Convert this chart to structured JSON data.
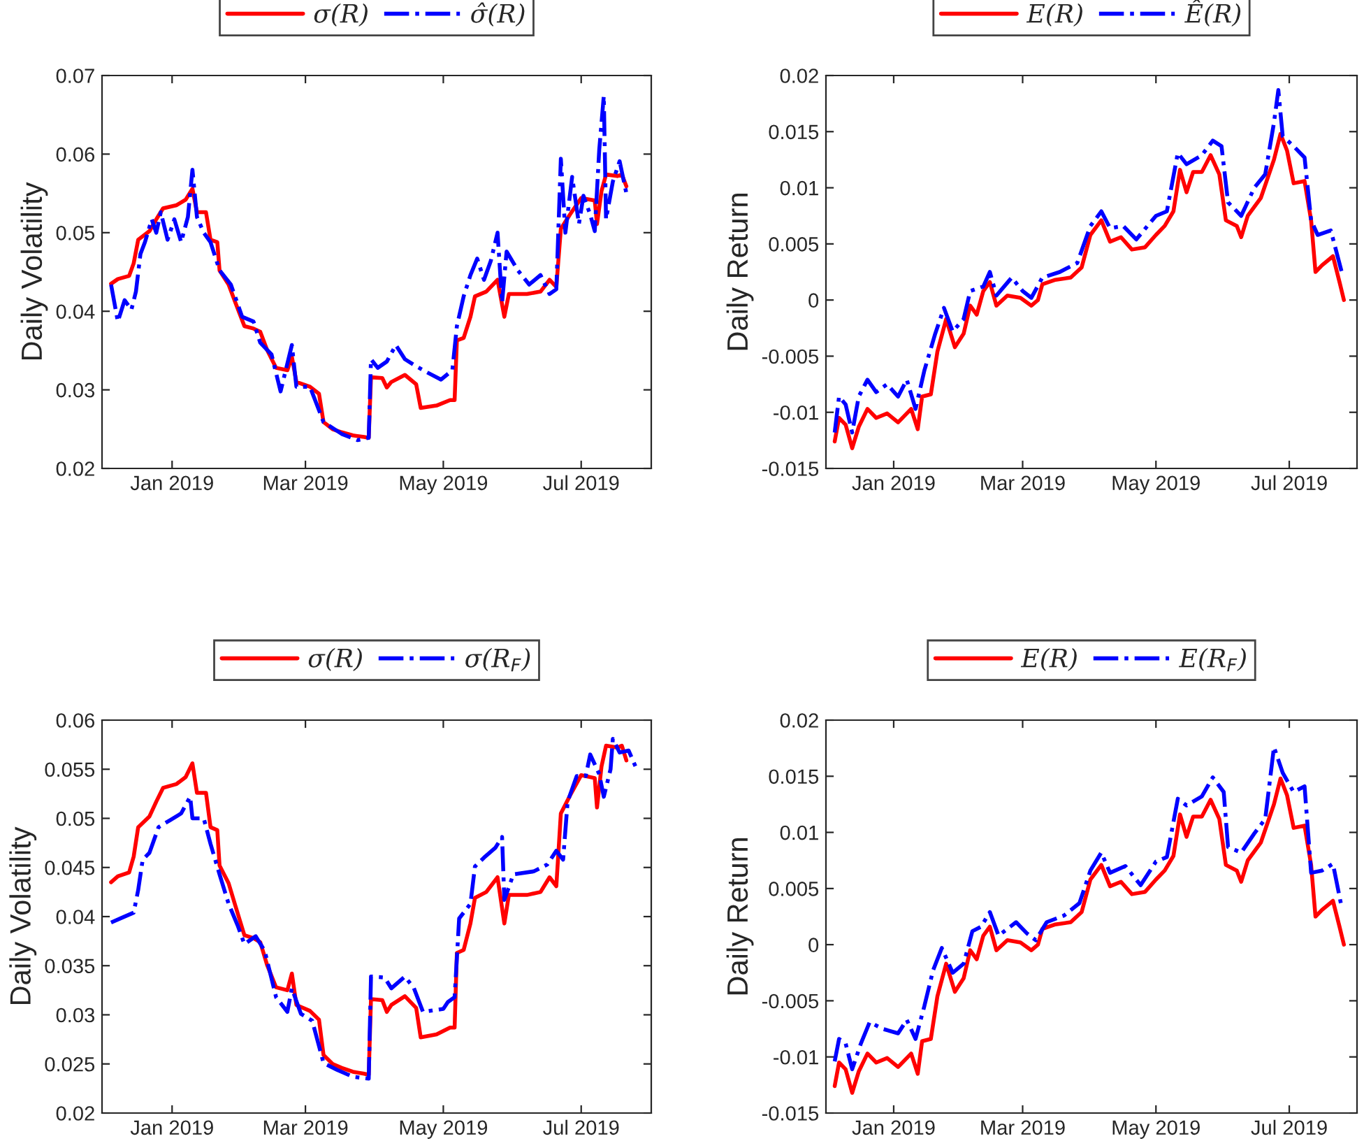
{
  "chart_data": [
    {
      "type": "line",
      "ylabel": "Daily Volatility",
      "legend": "top",
      "grid": false,
      "xlim": [
        "2018-12-01",
        "2019-08-01"
      ],
      "xticks": [
        {
          "value": "2019-01-01",
          "label": "Jan 2019"
        },
        {
          "value": "2019-03-01",
          "label": "Mar 2019"
        },
        {
          "value": "2019-05-01",
          "label": "May 2019"
        },
        {
          "value": "2019-07-01",
          "label": "Jul 2019"
        }
      ],
      "ylim": [
        0.02,
        0.07
      ],
      "yticks": [
        0.02,
        0.03,
        0.04,
        0.05,
        0.06,
        0.07
      ],
      "series": [
        {
          "name": "σ(R)",
          "color": "#ff0000",
          "line_style": "solid",
          "x": [
            "2018-12-05",
            "2018-12-08",
            "2018-12-13",
            "2018-12-15",
            "2018-12-17",
            "2018-12-22",
            "2018-12-25",
            "2018-12-28",
            "2019-01-03",
            "2019-01-07",
            "2019-01-10",
            "2019-01-12",
            "2019-01-16",
            "2019-01-18",
            "2019-01-21",
            "2019-01-22",
            "2019-01-26",
            "2019-01-29",
            "2019-02-02",
            "2019-02-06",
            "2019-02-09",
            "2019-02-12",
            "2019-02-16",
            "2019-02-21",
            "2019-02-23",
            "2019-02-25",
            "2019-03-03",
            "2019-03-07",
            "2019-03-09",
            "2019-03-13",
            "2019-03-17",
            "2019-03-22",
            "2019-03-27",
            "2019-03-29",
            "2019-03-30",
            "2019-04-04",
            "2019-04-06",
            "2019-04-08",
            "2019-04-14",
            "2019-04-19",
            "2019-04-21",
            "2019-04-28",
            "2019-05-04",
            "2019-05-06",
            "2019-05-07",
            "2019-05-10",
            "2019-05-13",
            "2019-05-15",
            "2019-05-20",
            "2019-05-25",
            "2019-05-28",
            "2019-05-30",
            "2019-06-07",
            "2019-06-13",
            "2019-06-17",
            "2019-06-20",
            "2019-06-22",
            "2019-06-26",
            "2019-07-01",
            "2019-07-07",
            "2019-07-08",
            "2019-07-10",
            "2019-07-12",
            "2019-07-17",
            "2019-07-19",
            "2019-07-21"
          ],
          "values": [
            0.0435,
            0.0441,
            0.0445,
            0.0461,
            0.0491,
            0.0502,
            0.0517,
            0.0531,
            0.0535,
            0.0542,
            0.0556,
            0.0526,
            0.0526,
            0.0491,
            0.0488,
            0.0452,
            0.0434,
            0.0411,
            0.0381,
            0.0378,
            0.0374,
            0.0351,
            0.0328,
            0.0325,
            0.0342,
            0.031,
            0.0304,
            0.0295,
            0.0259,
            0.025,
            0.0246,
            0.0242,
            0.024,
            0.0239,
            0.0316,
            0.0315,
            0.0303,
            0.031,
            0.0319,
            0.0307,
            0.0277,
            0.028,
            0.0287,
            0.0287,
            0.0363,
            0.0366,
            0.0393,
            0.0419,
            0.0425,
            0.044,
            0.0393,
            0.0422,
            0.0422,
            0.0425,
            0.044,
            0.0431,
            0.0505,
            0.0523,
            0.0544,
            0.0541,
            0.0511,
            0.0553,
            0.0574,
            0.0572,
            0.0574,
            0.0559
          ]
        },
        {
          "name": "σ̂(R)",
          "color": "#0000ff",
          "line_style": "dashdot",
          "x": [
            "2018-12-05",
            "2018-12-08",
            "2018-12-11",
            "2018-12-14",
            "2018-12-16",
            "2018-12-18",
            "2018-12-20",
            "2018-12-23",
            "2018-12-25",
            "2018-12-27",
            "2018-12-30",
            "2019-01-02",
            "2019-01-05",
            "2019-01-08",
            "2019-01-10",
            "2019-01-12",
            "2019-01-15",
            "2019-01-18",
            "2019-01-22",
            "2019-01-27",
            "2019-02-01",
            "2019-02-06",
            "2019-02-09",
            "2019-02-14",
            "2019-02-18",
            "2019-02-23",
            "2019-02-25",
            "2019-03-03",
            "2019-03-09",
            "2019-03-17",
            "2019-03-24",
            "2019-03-29",
            "2019-03-30",
            "2019-04-02",
            "2019-04-06",
            "2019-04-10",
            "2019-04-14",
            "2019-04-19",
            "2019-04-24",
            "2019-04-30",
            "2019-05-05",
            "2019-05-07",
            "2019-05-10",
            "2019-05-13",
            "2019-05-16",
            "2019-05-19",
            "2019-05-22",
            "2019-05-25",
            "2019-05-27",
            "2019-05-29",
            "2019-06-03",
            "2019-06-08",
            "2019-06-13",
            "2019-06-17",
            "2019-06-20",
            "2019-06-22",
            "2019-06-24",
            "2019-06-27",
            "2019-06-30",
            "2019-07-02",
            "2019-07-05",
            "2019-07-07",
            "2019-07-09",
            "2019-07-11",
            "2019-07-12",
            "2019-07-15",
            "2019-07-18",
            "2019-07-21"
          ],
          "values": [
            0.0434,
            0.0387,
            0.0414,
            0.0402,
            0.0425,
            0.0473,
            0.0488,
            0.0517,
            0.05,
            0.0526,
            0.0491,
            0.0517,
            0.0488,
            0.052,
            0.058,
            0.052,
            0.05,
            0.0488,
            0.0452,
            0.0434,
            0.0393,
            0.0387,
            0.036,
            0.0345,
            0.0298,
            0.0357,
            0.0304,
            0.0304,
            0.0259,
            0.0244,
            0.0236,
            0.0239,
            0.0339,
            0.0328,
            0.0336,
            0.0357,
            0.0339,
            0.033,
            0.0322,
            0.0313,
            0.0325,
            0.0381,
            0.0419,
            0.0446,
            0.0467,
            0.044,
            0.0464,
            0.05,
            0.0411,
            0.0476,
            0.0452,
            0.0434,
            0.0446,
            0.0422,
            0.0428,
            0.0594,
            0.05,
            0.0571,
            0.0511,
            0.0547,
            0.0523,
            0.0502,
            0.0606,
            0.0674,
            0.0517,
            0.0565,
            0.0591,
            0.055
          ]
        }
      ]
    },
    {
      "type": "line",
      "ylabel": "Daily Return",
      "legend": "top",
      "grid": false,
      "xlim": [
        "2018-12-01",
        "2019-08-01"
      ],
      "xticks": [
        {
          "value": "2019-01-01",
          "label": "Jan 2019"
        },
        {
          "value": "2019-03-01",
          "label": "Mar 2019"
        },
        {
          "value": "2019-05-01",
          "label": "May 2019"
        },
        {
          "value": "2019-07-01",
          "label": "Jul 2019"
        }
      ],
      "ylim": [
        -0.015,
        0.02
      ],
      "yticks": [
        -0.015,
        -0.01,
        -0.005,
        0,
        0.005,
        0.01,
        0.015,
        0.02
      ],
      "series": [
        {
          "name": "E(R)",
          "color": "#ff0000",
          "line_style": "solid",
          "x": [
            "2018-12-05",
            "2018-12-07",
            "2018-12-10",
            "2018-12-13",
            "2018-12-16",
            "2018-12-20",
            "2018-12-24",
            "2018-12-29",
            "2019-01-03",
            "2019-01-09",
            "2019-01-12",
            "2019-01-14",
            "2019-01-18",
            "2019-01-21",
            "2019-01-25",
            "2019-01-29",
            "2019-02-02",
            "2019-02-05",
            "2019-02-08",
            "2019-02-11",
            "2019-02-14",
            "2019-02-17",
            "2019-02-22",
            "2019-02-28",
            "2019-03-05",
            "2019-03-08",
            "2019-03-10",
            "2019-03-16",
            "2019-03-23",
            "2019-03-28",
            "2019-04-01",
            "2019-04-06",
            "2019-04-10",
            "2019-04-15",
            "2019-04-20",
            "2019-04-26",
            "2019-05-01",
            "2019-05-05",
            "2019-05-09",
            "2019-05-12",
            "2019-05-15",
            "2019-05-18",
            "2019-05-22",
            "2019-05-26",
            "2019-05-30",
            "2019-06-02",
            "2019-06-07",
            "2019-06-09",
            "2019-06-12",
            "2019-06-18",
            "2019-06-24",
            "2019-06-27",
            "2019-06-30",
            "2019-07-03",
            "2019-07-08",
            "2019-07-11",
            "2019-07-13",
            "2019-07-16",
            "2019-07-21",
            "2019-07-24",
            "2019-07-26"
          ],
          "values": [
            -0.0126,
            -0.0105,
            -0.0111,
            -0.0132,
            -0.0113,
            -0.0097,
            -0.0105,
            -0.0101,
            -0.0109,
            -0.0097,
            -0.0115,
            -0.0086,
            -0.0084,
            -0.0046,
            -0.0017,
            -0.0042,
            -0.003,
            -0.0005,
            -0.0013,
            0.0008,
            0.0016,
            -0.0005,
            0.0004,
            0.0002,
            -0.0005,
            0.0,
            0.0014,
            0.0018,
            0.002,
            0.0029,
            0.0058,
            0.0071,
            0.0052,
            0.0056,
            0.0045,
            0.0047,
            0.0058,
            0.0066,
            0.0079,
            0.0116,
            0.0096,
            0.0114,
            0.0114,
            0.0129,
            0.0112,
            0.0071,
            0.0066,
            0.0056,
            0.0075,
            0.0091,
            0.0125,
            0.0148,
            0.0133,
            0.0104,
            0.0106,
            0.0071,
            0.0025,
            0.0031,
            0.0039,
            0.0016,
            0.0
          ]
        },
        {
          "name": "Ê(R)",
          "color": "#0000ff",
          "line_style": "dashdot",
          "x": [
            "2018-12-05",
            "2018-12-07",
            "2018-12-10",
            "2018-12-13",
            "2018-12-16",
            "2018-12-20",
            "2018-12-24",
            "2018-12-29",
            "2019-01-03",
            "2019-01-07",
            "2019-01-11",
            "2019-01-15",
            "2019-01-20",
            "2019-01-24",
            "2019-01-28",
            "2019-02-02",
            "2019-02-05",
            "2019-02-11",
            "2019-02-14",
            "2019-02-17",
            "2019-02-24",
            "2019-03-01",
            "2019-03-05",
            "2019-03-10",
            "2019-03-18",
            "2019-03-26",
            "2019-04-01",
            "2019-04-06",
            "2019-04-10",
            "2019-04-16",
            "2019-04-22",
            "2019-05-01",
            "2019-05-06",
            "2019-05-11",
            "2019-05-15",
            "2019-05-22",
            "2019-05-27",
            "2019-05-31",
            "2019-06-03",
            "2019-06-09",
            "2019-06-15",
            "2019-06-20",
            "2019-06-24",
            "2019-06-26",
            "2019-06-28",
            "2019-07-03",
            "2019-07-08",
            "2019-07-11",
            "2019-07-14",
            "2019-07-20",
            "2019-07-25"
          ],
          "values": [
            -0.0118,
            -0.0086,
            -0.0093,
            -0.0118,
            -0.0086,
            -0.0071,
            -0.0082,
            -0.0075,
            -0.0086,
            -0.0071,
            -0.0097,
            -0.0063,
            -0.003,
            -0.0007,
            -0.0028,
            -0.0017,
            0.0008,
            0.0012,
            0.0025,
            0.0004,
            0.002,
            0.0008,
            0.0002,
            0.002,
            0.0025,
            0.0033,
            0.0066,
            0.0079,
            0.0064,
            0.0066,
            0.0054,
            0.0075,
            0.0079,
            0.0131,
            0.0121,
            0.0129,
            0.0142,
            0.0137,
            0.0087,
            0.0075,
            0.01,
            0.0112,
            0.0158,
            0.0187,
            0.0146,
            0.0137,
            0.0127,
            0.0071,
            0.0058,
            0.0062,
            0.0025
          ]
        }
      ]
    },
    {
      "type": "line",
      "ylabel": "Daily Volatility",
      "legend": "top",
      "grid": false,
      "xlim": [
        "2018-12-01",
        "2019-08-01"
      ],
      "xticks": [
        {
          "value": "2019-01-01",
          "label": "Jan 2019"
        },
        {
          "value": "2019-03-01",
          "label": "Mar 2019"
        },
        {
          "value": "2019-05-01",
          "label": "May 2019"
        },
        {
          "value": "2019-07-01",
          "label": "Jul 2019"
        }
      ],
      "ylim": [
        0.02,
        0.06
      ],
      "yticks": [
        0.02,
        0.025,
        0.03,
        0.035,
        0.04,
        0.045,
        0.05,
        0.055,
        0.06
      ],
      "series": [
        {
          "name": "σ(R)",
          "color": "#ff0000",
          "line_style": "solid",
          "x": [
            "2018-12-05",
            "2018-12-08",
            "2018-12-13",
            "2018-12-15",
            "2018-12-17",
            "2018-12-22",
            "2018-12-25",
            "2018-12-28",
            "2019-01-03",
            "2019-01-07",
            "2019-01-10",
            "2019-01-12",
            "2019-01-16",
            "2019-01-18",
            "2019-01-21",
            "2019-01-22",
            "2019-01-26",
            "2019-01-29",
            "2019-02-02",
            "2019-02-06",
            "2019-02-09",
            "2019-02-12",
            "2019-02-16",
            "2019-02-21",
            "2019-02-23",
            "2019-02-25",
            "2019-03-03",
            "2019-03-07",
            "2019-03-09",
            "2019-03-13",
            "2019-03-17",
            "2019-03-22",
            "2019-03-27",
            "2019-03-29",
            "2019-03-30",
            "2019-04-04",
            "2019-04-06",
            "2019-04-08",
            "2019-04-14",
            "2019-04-19",
            "2019-04-21",
            "2019-04-28",
            "2019-05-04",
            "2019-05-06",
            "2019-05-07",
            "2019-05-10",
            "2019-05-13",
            "2019-05-15",
            "2019-05-20",
            "2019-05-25",
            "2019-05-28",
            "2019-05-30",
            "2019-06-07",
            "2019-06-13",
            "2019-06-17",
            "2019-06-20",
            "2019-06-22",
            "2019-06-26",
            "2019-07-01",
            "2019-07-07",
            "2019-07-08",
            "2019-07-10",
            "2019-07-12",
            "2019-07-17",
            "2019-07-19",
            "2019-07-21"
          ],
          "values": [
            0.0435,
            0.0441,
            0.0445,
            0.0461,
            0.0491,
            0.0502,
            0.0517,
            0.0531,
            0.0535,
            0.0542,
            0.0556,
            0.0526,
            0.0526,
            0.0491,
            0.0488,
            0.0452,
            0.0434,
            0.0411,
            0.0381,
            0.0378,
            0.0374,
            0.0351,
            0.0328,
            0.0325,
            0.0342,
            0.031,
            0.0304,
            0.0295,
            0.0259,
            0.025,
            0.0246,
            0.0242,
            0.024,
            0.0239,
            0.0316,
            0.0315,
            0.0303,
            0.031,
            0.0319,
            0.0307,
            0.0277,
            0.028,
            0.0287,
            0.0287,
            0.0363,
            0.0366,
            0.0393,
            0.0419,
            0.0425,
            0.044,
            0.0393,
            0.0422,
            0.0422,
            0.0425,
            0.044,
            0.0431,
            0.0505,
            0.0523,
            0.0544,
            0.0541,
            0.0511,
            0.0553,
            0.0574,
            0.0572,
            0.0574,
            0.0559
          ]
        },
        {
          "name": "σ(R$_{F}$)",
          "color": "#0000ff",
          "line_style": "dashdot",
          "x": [
            "2018-12-05",
            "2018-12-10",
            "2018-12-15",
            "2018-12-17",
            "2018-12-19",
            "2018-12-22",
            "2018-12-26",
            "2018-12-31",
            "2019-01-05",
            "2019-01-09",
            "2019-01-10",
            "2019-01-15",
            "2019-01-18",
            "2019-01-22",
            "2019-01-26",
            "2019-01-30",
            "2019-02-02",
            "2019-02-07",
            "2019-02-11",
            "2019-02-16",
            "2019-02-21",
            "2019-02-23",
            "2019-02-27",
            "2019-03-04",
            "2019-03-09",
            "2019-03-15",
            "2019-03-22",
            "2019-03-29",
            "2019-03-30",
            "2019-04-05",
            "2019-04-08",
            "2019-04-14",
            "2019-04-18",
            "2019-04-22",
            "2019-05-01",
            "2019-05-03",
            "2019-05-06",
            "2019-05-08",
            "2019-05-13",
            "2019-05-15",
            "2019-05-19",
            "2019-05-24",
            "2019-05-27",
            "2019-05-28",
            "2019-06-01",
            "2019-06-10",
            "2019-06-16",
            "2019-06-20",
            "2019-06-23",
            "2019-06-25",
            "2019-06-29",
            "2019-07-03",
            "2019-07-05",
            "2019-07-09",
            "2019-07-11",
            "2019-07-14",
            "2019-07-15",
            "2019-07-18",
            "2019-07-22",
            "2019-07-25"
          ],
          "values": [
            0.0394,
            0.0399,
            0.0404,
            0.0427,
            0.0458,
            0.0465,
            0.0491,
            0.0498,
            0.0505,
            0.0522,
            0.05,
            0.05,
            0.0474,
            0.0443,
            0.0413,
            0.0391,
            0.0372,
            0.038,
            0.0365,
            0.0318,
            0.0303,
            0.0327,
            0.0301,
            0.0294,
            0.0251,
            0.0244,
            0.0237,
            0.0235,
            0.0339,
            0.0338,
            0.0327,
            0.0339,
            0.0327,
            0.0303,
            0.0306,
            0.0313,
            0.0318,
            0.0398,
            0.0413,
            0.0451,
            0.046,
            0.047,
            0.0481,
            0.0417,
            0.0443,
            0.0446,
            0.0453,
            0.0467,
            0.0458,
            0.0517,
            0.0543,
            0.0543,
            0.0565,
            0.0545,
            0.0522,
            0.055,
            0.0581,
            0.0567,
            0.0569,
            0.0553
          ]
        }
      ]
    },
    {
      "type": "line",
      "ylabel": "Daily Return",
      "legend": "top",
      "grid": false,
      "xlim": [
        "2018-12-01",
        "2019-08-01"
      ],
      "xticks": [
        {
          "value": "2019-01-01",
          "label": "Jan 2019"
        },
        {
          "value": "2019-03-01",
          "label": "Mar 2019"
        },
        {
          "value": "2019-05-01",
          "label": "May 2019"
        },
        {
          "value": "2019-07-01",
          "label": "Jul 2019"
        }
      ],
      "ylim": [
        -0.015,
        0.02
      ],
      "yticks": [
        -0.015,
        -0.01,
        -0.005,
        0,
        0.005,
        0.01,
        0.015,
        0.02
      ],
      "series": [
        {
          "name": "E(R)",
          "color": "#ff0000",
          "line_style": "solid",
          "x": [
            "2018-12-05",
            "2018-12-07",
            "2018-12-10",
            "2018-12-13",
            "2018-12-16",
            "2018-12-20",
            "2018-12-24",
            "2018-12-29",
            "2019-01-03",
            "2019-01-09",
            "2019-01-12",
            "2019-01-14",
            "2019-01-18",
            "2019-01-21",
            "2019-01-25",
            "2019-01-29",
            "2019-02-02",
            "2019-02-05",
            "2019-02-08",
            "2019-02-11",
            "2019-02-14",
            "2019-02-17",
            "2019-02-22",
            "2019-02-28",
            "2019-03-05",
            "2019-03-08",
            "2019-03-10",
            "2019-03-16",
            "2019-03-23",
            "2019-03-28",
            "2019-04-01",
            "2019-04-06",
            "2019-04-10",
            "2019-04-15",
            "2019-04-20",
            "2019-04-26",
            "2019-05-01",
            "2019-05-05",
            "2019-05-09",
            "2019-05-12",
            "2019-05-15",
            "2019-05-18",
            "2019-05-22",
            "2019-05-26",
            "2019-05-30",
            "2019-06-02",
            "2019-06-07",
            "2019-06-09",
            "2019-06-12",
            "2019-06-18",
            "2019-06-24",
            "2019-06-27",
            "2019-06-30",
            "2019-07-03",
            "2019-07-08",
            "2019-07-11",
            "2019-07-13",
            "2019-07-16",
            "2019-07-21",
            "2019-07-24",
            "2019-07-26"
          ],
          "values": [
            -0.0126,
            -0.0105,
            -0.0111,
            -0.0132,
            -0.0113,
            -0.0097,
            -0.0105,
            -0.0101,
            -0.0109,
            -0.0097,
            -0.0115,
            -0.0086,
            -0.0084,
            -0.0046,
            -0.0017,
            -0.0042,
            -0.003,
            -0.0005,
            -0.0013,
            0.0008,
            0.0016,
            -0.0005,
            0.0004,
            0.0002,
            -0.0005,
            0.0,
            0.0014,
            0.0018,
            0.002,
            0.0029,
            0.0058,
            0.0071,
            0.0052,
            0.0056,
            0.0045,
            0.0047,
            0.0058,
            0.0066,
            0.0079,
            0.0116,
            0.0096,
            0.0114,
            0.0114,
            0.0129,
            0.0112,
            0.0071,
            0.0066,
            0.0056,
            0.0075,
            0.0091,
            0.0125,
            0.0148,
            0.0133,
            0.0104,
            0.0106,
            0.0071,
            0.0025,
            0.0031,
            0.0039,
            0.0016,
            0.0
          ]
        },
        {
          "name": "E(R$_{F}$)",
          "color": "#0000ff",
          "line_style": "dashdot",
          "x": [
            "2018-12-05",
            "2018-12-07",
            "2018-12-10",
            "2018-12-13",
            "2018-12-17",
            "2018-12-21",
            "2018-12-27",
            "2019-01-03",
            "2019-01-07",
            "2019-01-11",
            "2019-01-15",
            "2019-01-19",
            "2019-01-23",
            "2019-01-28",
            "2019-02-02",
            "2019-02-06",
            "2019-02-10",
            "2019-02-14",
            "2019-02-18",
            "2019-02-26",
            "2019-03-03",
            "2019-03-07",
            "2019-03-12",
            "2019-03-20",
            "2019-03-27",
            "2019-04-01",
            "2019-04-06",
            "2019-04-10",
            "2019-04-17",
            "2019-04-24",
            "2019-05-01",
            "2019-05-06",
            "2019-05-11",
            "2019-05-15",
            "2019-05-22",
            "2019-05-27",
            "2019-06-01",
            "2019-06-03",
            "2019-06-09",
            "2019-06-15",
            "2019-06-20",
            "2019-06-24",
            "2019-06-28",
            "2019-07-03",
            "2019-07-08",
            "2019-07-11",
            "2019-07-16",
            "2019-07-21",
            "2019-07-25"
          ],
          "values": [
            -0.0104,
            -0.0084,
            -0.0088,
            -0.0111,
            -0.0088,
            -0.0069,
            -0.0075,
            -0.0079,
            -0.0067,
            -0.0084,
            -0.0055,
            -0.0023,
            -0.0003,
            -0.0025,
            -0.0017,
            0.0012,
            0.0016,
            0.0029,
            0.0008,
            0.002,
            0.001,
            0.0004,
            0.002,
            0.0026,
            0.0037,
            0.0066,
            0.0082,
            0.0064,
            0.007,
            0.0053,
            0.0074,
            0.0078,
            0.013,
            0.0124,
            0.0132,
            0.0149,
            0.0136,
            0.0087,
            0.0082,
            0.0099,
            0.0112,
            0.0176,
            0.0153,
            0.0136,
            0.0141,
            0.0064,
            0.0066,
            0.0072,
            0.0033
          ]
        }
      ]
    }
  ]
}
